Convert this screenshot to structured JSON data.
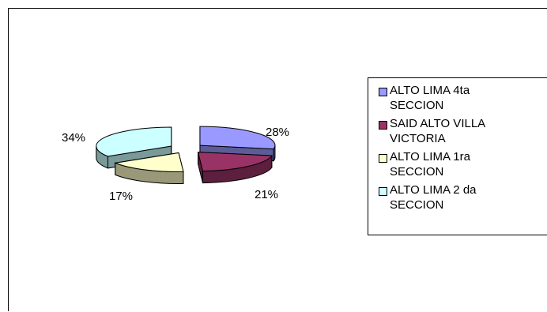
{
  "chart_data": {
    "type": "pie",
    "style": "3d-exploded",
    "title": "",
    "categories": [
      "ALTO LIMA 4ta SECCION",
      "SAID ALTO VILLA VICTORIA",
      "ALTO  LIMA 1ra SECCION",
      "ALTO LIMA 2 da SECCION"
    ],
    "values": [
      28,
      21,
      17,
      34
    ],
    "labels": [
      "28%",
      "21%",
      "17%",
      "34%"
    ],
    "colors": [
      "#9999ff",
      "#993366",
      "#ffffcc",
      "#ccffff"
    ],
    "side_colors": [
      "#5c5c99",
      "#5c1f3d",
      "#99997a",
      "#7a9999"
    ],
    "legend": {
      "position": "right",
      "entries": [
        {
          "text": "ALTO LIMA 4ta\nSECCION"
        },
        {
          "text": "SAID ALTO VILLA\nVICTORIA"
        },
        {
          "text": "ALTO  LIMA 1ra\nSECCION"
        },
        {
          "text": "ALTO LIMA 2 da\nSECCION"
        }
      ]
    }
  }
}
